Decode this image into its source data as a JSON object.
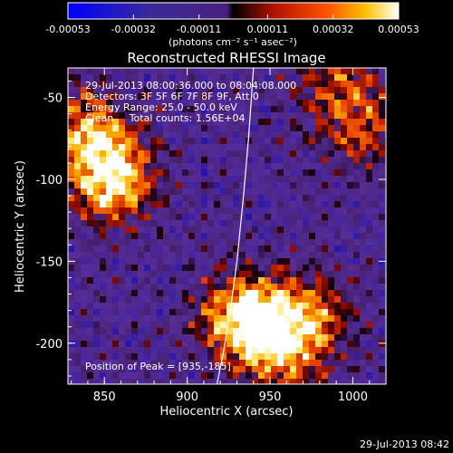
{
  "chart_data": {
    "type": "heatmap",
    "title": "Reconstructed RHESSI Image",
    "xlabel": "Heliocentric X (arcsec)",
    "ylabel": "Heliocentric Y (arcsec)",
    "xlim": [
      828,
      1020
    ],
    "ylim": [
      -225,
      -32
    ],
    "x_ticks": [
      "850",
      "900",
      "950",
      "1000"
    ],
    "x_tick_values": [
      850,
      900,
      950,
      1000
    ],
    "y_ticks": [
      "-50",
      "-100",
      "-150",
      "-200"
    ],
    "y_tick_values": [
      -50,
      -100,
      -150,
      -200
    ],
    "colorbar": {
      "ticks": [
        "-0.00053",
        "-0.00032",
        "-0.00011",
        "0.00011",
        "0.00032",
        "0.00053"
      ],
      "tick_values": [
        -0.00053,
        -0.00032,
        -0.00011,
        0.00011,
        0.00032,
        0.00053
      ],
      "range": [
        -0.00053,
        0.00053
      ],
      "unit_label": "(photons cm⁻² s⁻¹ asec⁻²)"
    },
    "annotations": {
      "time": "29-Jul-2013 08:00:36.000 to 08:04:08.000",
      "detectors": "Detectors: 3F 5F 6F 7F 8F 9F, Att 0",
      "energy": "Energy Range: 25.0 - 50.0 keV",
      "clean": "Clean     Total counts: 1.56E+04",
      "peak": "Position of Peak = [935,-185]"
    },
    "limb_curve": [
      [
        918,
        -225
      ],
      [
        922,
        -205
      ],
      [
        926,
        -180
      ],
      [
        930,
        -150
      ],
      [
        934,
        -110
      ],
      [
        937,
        -75
      ],
      [
        940,
        -32
      ]
    ],
    "sources": [
      {
        "x": 935,
        "y": -185,
        "intensity": 1.0
      },
      {
        "x": 855,
        "y": -100,
        "intensity": 0.9
      },
      {
        "x": 840,
        "y": -70,
        "intensity": 0.65
      },
      {
        "x": 960,
        "y": -205,
        "intensity": 0.6
      },
      {
        "x": 975,
        "y": -180,
        "intensity": 0.5
      },
      {
        "x": 1005,
        "y": -70,
        "intensity": 0.45
      },
      {
        "x": 990,
        "y": -40,
        "intensity": 0.4
      }
    ]
  },
  "footer": {
    "timestamp": "29-Jul-2013 08:42"
  }
}
